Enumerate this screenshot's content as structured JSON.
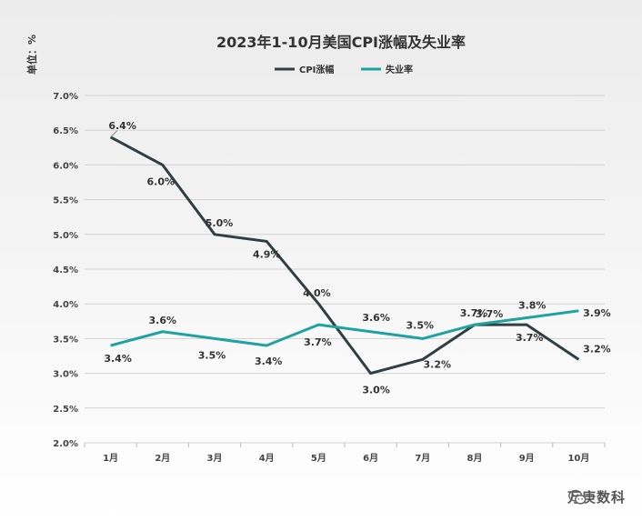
{
  "chart_data": {
    "type": "line",
    "title": "2023年1-10月美国CPI涨幅及失业率",
    "unit_label": "单位：%",
    "categories": [
      "1月",
      "2月",
      "3月",
      "4月",
      "5月",
      "6月",
      "7月",
      "8月",
      "9月",
      "10月"
    ],
    "series": [
      {
        "name": "CPI涨幅",
        "color": "#2f3f44",
        "values": [
          6.4,
          6.0,
          5.0,
          4.9,
          4.0,
          3.0,
          3.2,
          3.7,
          3.7,
          3.2
        ],
        "labels": [
          "6.4%",
          "6.0%",
          "5.0%",
          "4.9%",
          "4.0%",
          "3.0%",
          "3.2%",
          "3.7%",
          "3.7%",
          "3.2%"
        ]
      },
      {
        "name": "失业率",
        "color": "#1fa3a0",
        "values": [
          3.4,
          3.6,
          3.5,
          3.4,
          3.7,
          3.6,
          3.5,
          3.7,
          3.8,
          3.9
        ],
        "labels": [
          "3.4%",
          "3.6%",
          "3.5%",
          "3.4%",
          "3.7%",
          "3.6%",
          "3.5%",
          "3.7%",
          "3.8%",
          "3.9%"
        ]
      }
    ],
    "yticks": [
      "2.0%",
      "2.5%",
      "3.0%",
      "3.5%",
      "4.0%",
      "4.5%",
      "5.0%",
      "5.5%",
      "6.0%",
      "6.5%",
      "7.0%"
    ],
    "ylim": [
      2.0,
      7.0
    ],
    "grid": true,
    "legend_position": "top-center"
  },
  "watermark": {
    "text": "万庚数科",
    "icon": "wechat-icon"
  }
}
